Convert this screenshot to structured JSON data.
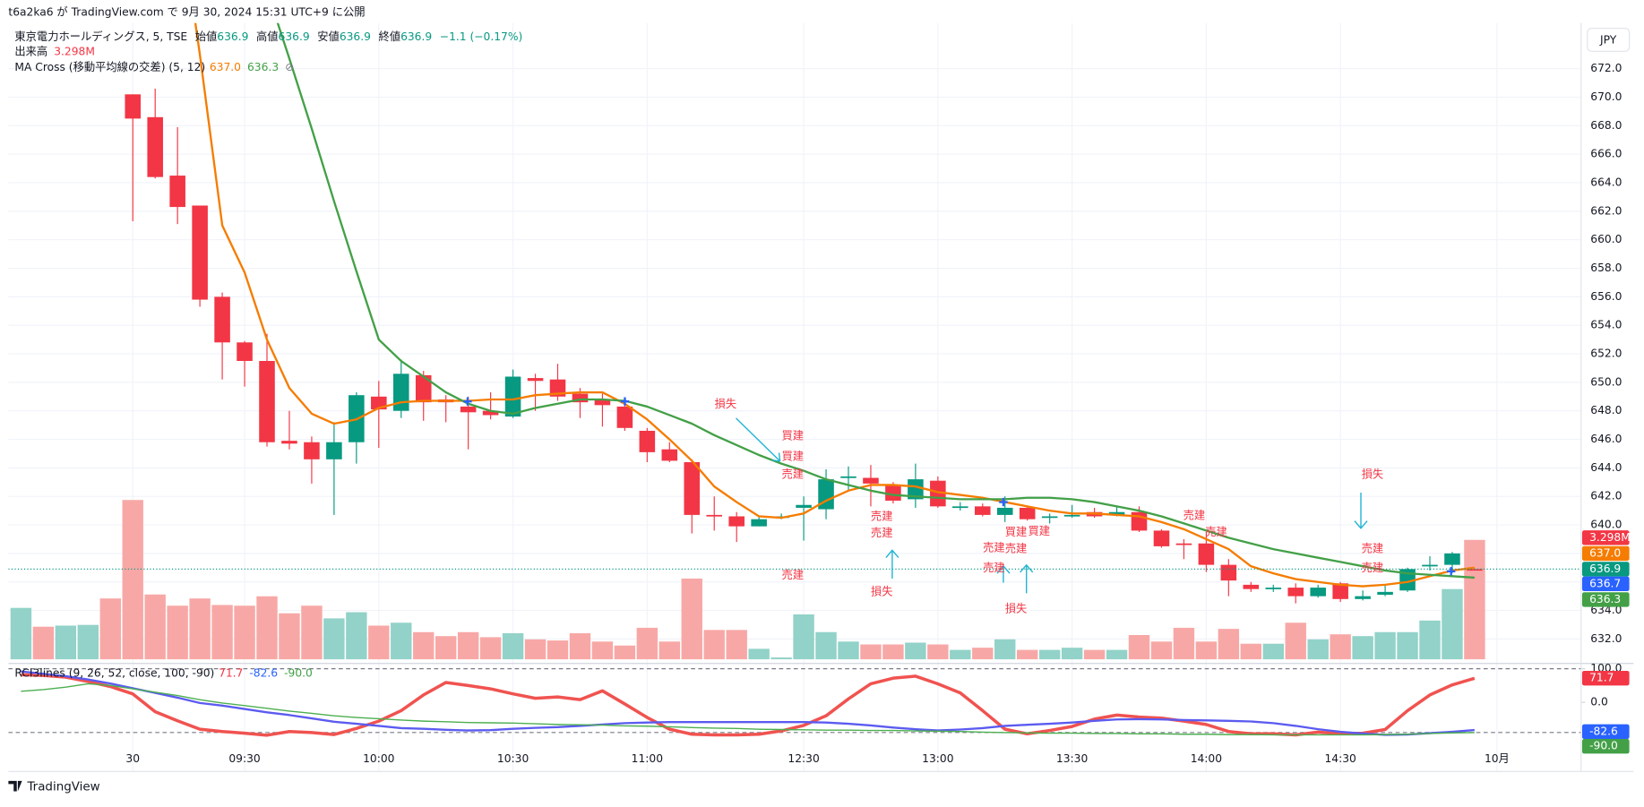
{
  "header": {
    "published": "t6a2ka6 が TradingView.com で 9月 30, 2024 15:31 UTC+9 に公開"
  },
  "legend": {
    "symbol": "東京電力ホールディングス, 5, TSE",
    "ohlc": [
      {
        "label": "始値",
        "value": "636.9"
      },
      {
        "label": "高値",
        "value": "636.9"
      },
      {
        "label": "安値",
        "value": "636.9"
      },
      {
        "label": "終値",
        "value": "636.9"
      }
    ],
    "change": "−1.1 (−0.17%)",
    "volume_label": "出来高",
    "volume_value": "3.298M",
    "ma_name": "MA Cross (移動平均線の交差) (5, 12)",
    "ma_values": [
      "637.0",
      "636.3"
    ],
    "rci_name": "RCI3lines (9, 26, 52, close, 100, -90)",
    "rci_values": [
      "71.7",
      "-82.6",
      "-90.0"
    ]
  },
  "currency": "JPY",
  "footer": "TradingView",
  "badges": [
    {
      "text": "3.298M",
      "color": "#f23645"
    },
    {
      "text": "637.0",
      "color": "#f57c00"
    },
    {
      "text": "636.9",
      "color": "#089981"
    },
    {
      "text": "636.7",
      "color": "#2962ff"
    },
    {
      "text": "636.3",
      "color": "#43a047"
    }
  ],
  "rci_badges": [
    {
      "text": "71.7",
      "color": "#f23645"
    },
    {
      "text": "-82.6",
      "color": "#2962ff"
    },
    {
      "text": "-90.0",
      "color": "#43a047"
    }
  ],
  "annotations": [
    "損失",
    "買建",
    "買建",
    "売建",
    "売建",
    "売建",
    "売建",
    "損失",
    "売建",
    "売建",
    "損失",
    "買建",
    "売建",
    "買建",
    "売建",
    "売建",
    "損失",
    "売建",
    "売建"
  ],
  "chart_data": {
    "type": "candlestick",
    "up_color": "#089981",
    "down_color": "#f23645",
    "categories": [
      null,
      null,
      null,
      null,
      null,
      "30",
      null,
      null,
      null,
      null,
      "09:30",
      null,
      null,
      null,
      null,
      null,
      "10:00",
      null,
      null,
      null,
      null,
      null,
      "10:30",
      null,
      null,
      null,
      null,
      null,
      "11:00",
      null,
      null,
      null,
      null,
      null,
      null,
      "12:30",
      null,
      null,
      null,
      null,
      null,
      "13:00",
      null,
      null,
      null,
      null,
      null,
      "13:30",
      null,
      null,
      null,
      null,
      null,
      "14:00",
      null,
      null,
      null,
      null,
      null,
      "14:30",
      null,
      null,
      null,
      null,
      null,
      null,
      "10月"
    ],
    "open": [
      null,
      null,
      null,
      null,
      null,
      670.2,
      668.6,
      664.5,
      662.4,
      656.0,
      652.8,
      651.5,
      645.9,
      645.8,
      644.6,
      645.8,
      649.0,
      648.0,
      650.5,
      648.8,
      648.3,
      648.0,
      647.6,
      650.3,
      650.2,
      649.2,
      648.8,
      648.3,
      646.6,
      645.3,
      644.4,
      640.7,
      640.6,
      639.9,
      640.5,
      641.2,
      641.1,
      643.3,
      643.3,
      642.8,
      641.8,
      643.1,
      641.2,
      641.3,
      640.7,
      641.2,
      640.5,
      640.6,
      640.9,
      640.7,
      640.9,
      639.6,
      638.7,
      638.7,
      637.2,
      635.8,
      635.5,
      635.6,
      635.0,
      635.9,
      634.8,
      635.1,
      635.4,
      637.1,
      637.2,
      636.9,
      null
    ],
    "high": [
      null,
      null,
      null,
      null,
      null,
      670.2,
      670.6,
      667.9,
      662.4,
      656.3,
      652.9,
      653.4,
      648.0,
      646.2,
      647.2,
      649.3,
      650.1,
      651.6,
      650.8,
      649.1,
      649.0,
      649.3,
      650.9,
      650.6,
      651.3,
      649.6,
      649.2,
      648.5,
      646.8,
      645.8,
      644.6,
      642.0,
      640.9,
      640.6,
      640.8,
      642.0,
      643.9,
      644.1,
      644.2,
      643.0,
      644.3,
      643.4,
      641.6,
      641.5,
      642.0,
      641.3,
      640.8,
      641.4,
      641.2,
      641.3,
      641.3,
      639.7,
      639.0,
      639.5,
      637.6,
      636.0,
      635.8,
      635.9,
      635.8,
      636.0,
      635.4,
      635.8,
      637.0,
      637.8,
      638.1,
      636.9,
      null
    ],
    "low": [
      null,
      null,
      null,
      null,
      null,
      661.3,
      664.3,
      661.1,
      655.3,
      650.2,
      649.7,
      645.5,
      645.3,
      642.9,
      640.7,
      644.3,
      645.4,
      647.5,
      647.3,
      647.2,
      645.3,
      647.4,
      647.5,
      648.0,
      648.7,
      647.5,
      646.9,
      646.6,
      644.4,
      644.4,
      639.4,
      639.6,
      638.8,
      639.9,
      640.4,
      638.9,
      640.4,
      642.4,
      641.3,
      641.5,
      641.2,
      641.2,
      641.0,
      640.6,
      640.2,
      640.3,
      640.1,
      640.5,
      640.5,
      640.6,
      639.5,
      638.4,
      637.6,
      636.7,
      635.0,
      635.3,
      635.3,
      634.5,
      634.9,
      634.6,
      634.7,
      635.0,
      635.3,
      636.8,
      636.6,
      636.9,
      null
    ],
    "close": [
      null,
      null,
      null,
      null,
      null,
      668.5,
      664.4,
      662.3,
      655.8,
      652.8,
      651.5,
      645.8,
      645.7,
      644.6,
      645.8,
      649.1,
      648.1,
      650.6,
      648.6,
      648.6,
      647.9,
      647.7,
      650.4,
      650.1,
      649.0,
      648.6,
      648.4,
      646.8,
      645.1,
      644.5,
      640.7,
      640.6,
      639.9,
      640.4,
      640.6,
      641.4,
      643.2,
      643.4,
      642.9,
      641.7,
      643.2,
      641.3,
      641.3,
      640.7,
      641.2,
      640.4,
      640.6,
      640.7,
      640.6,
      640.9,
      639.6,
      638.5,
      638.6,
      637.2,
      636.1,
      635.5,
      635.6,
      635.0,
      635.6,
      634.8,
      635.0,
      635.3,
      636.9,
      637.2,
      638.0,
      636.9,
      null
    ],
    "volume": [
      1.42,
      0.9,
      0.93,
      0.95,
      1.68,
      4.4,
      1.79,
      1.48,
      1.68,
      1.5,
      1.48,
      1.74,
      1.27,
      1.48,
      1.13,
      1.3,
      0.93,
      1.01,
      0.75,
      0.64,
      0.75,
      0.61,
      0.72,
      0.55,
      0.52,
      0.72,
      0.49,
      0.38,
      0.87,
      0.49,
      2.23,
      0.81,
      0.81,
      0.29,
      0.05,
      1.24,
      0.75,
      0.49,
      0.41,
      0.41,
      0.46,
      0.41,
      0.26,
      0.32,
      0.55,
      0.26,
      0.26,
      0.32,
      0.26,
      0.26,
      0.67,
      0.49,
      0.87,
      0.49,
      0.84,
      0.43,
      0.43,
      1.01,
      0.55,
      0.69,
      0.64,
      0.75,
      0.75,
      1.07,
      1.94,
      3.298,
      null
    ],
    "volume_colors": [
      "#92d2c8",
      "#f7a8a6",
      "#92d2c8",
      "#92d2c8",
      "#f7a8a6",
      "#f7a8a6",
      "#f7a8a6",
      "#f7a8a6",
      "#f7a8a6",
      "#f7a8a6",
      "#f7a8a6",
      "#f7a8a6",
      "#f7a8a6",
      "#f7a8a6",
      "#92d2c8",
      "#92d2c8",
      "#f7a8a6",
      "#92d2c8",
      "#f7a8a6",
      "#f7a8a6",
      "#f7a8a6",
      "#f7a8a6",
      "#92d2c8",
      "#f7a8a6",
      "#f7a8a6",
      "#f7a8a6",
      "#f7a8a6",
      "#f7a8a6",
      "#f7a8a6",
      "#f7a8a6",
      "#f7a8a6",
      "#f7a8a6",
      "#f7a8a6",
      "#92d2c8",
      "#92d2c8",
      "#92d2c8",
      "#92d2c8",
      "#92d2c8",
      "#f7a8a6",
      "#f7a8a6",
      "#92d2c8",
      "#f7a8a6",
      "#92d2c8",
      "#f7a8a6",
      "#92d2c8",
      "#f7a8a6",
      "#92d2c8",
      "#92d2c8",
      "#f7a8a6",
      "#92d2c8",
      "#f7a8a6",
      "#f7a8a6",
      "#f7a8a6",
      "#f7a8a6",
      "#f7a8a6",
      "#f7a8a6",
      "#92d2c8",
      "#f7a8a6",
      "#92d2c8",
      "#f7a8a6",
      "#92d2c8",
      "#92d2c8",
      "#92d2c8",
      "#92d2c8",
      "#92d2c8",
      "#f7a8a6",
      null
    ],
    "ma_lines": [
      {
        "color": "#f57c00",
        "values": [
          null,
          null,
          null,
          null,
          null,
          null,
          null,
          683.9,
          673.0,
          661.0,
          657.7,
          653.0,
          649.6,
          647.8,
          647.1,
          647.4,
          648.2,
          648.6,
          648.7,
          648.7,
          648.7,
          648.8,
          648.8,
          649.1,
          649.2,
          649.3,
          649.3,
          648.5,
          647.4,
          646.0,
          644.5,
          642.7,
          641.6,
          640.6,
          640.5,
          640.8,
          641.7,
          642.4,
          642.8,
          642.8,
          642.7,
          642.3,
          642.1,
          641.9,
          641.6,
          641.3,
          641.0,
          640.8,
          640.8,
          640.7,
          640.6,
          640.2,
          639.7,
          639.0,
          638.3,
          637.1,
          636.6,
          636.2,
          636.0,
          635.8,
          635.7,
          635.8,
          636.0,
          636.4,
          636.8,
          637.0,
          null
        ]
      },
      {
        "color": "#43a047",
        "values": [
          null,
          null,
          null,
          null,
          null,
          null,
          null,
          null,
          null,
          null,
          null,
          677.5,
          672.7,
          667.8,
          662.7,
          657.8,
          653.0,
          651.5,
          650.4,
          649.3,
          648.5,
          648.0,
          647.8,
          648.2,
          648.5,
          648.8,
          648.8,
          648.7,
          648.3,
          647.7,
          647.1,
          646.3,
          645.6,
          644.9,
          644.3,
          643.8,
          643.2,
          642.8,
          642.4,
          642.1,
          642.0,
          641.9,
          641.8,
          641.8,
          641.8,
          641.9,
          641.9,
          641.8,
          641.6,
          641.3,
          641.0,
          640.6,
          640.1,
          639.6,
          639.1,
          638.7,
          638.3,
          638.0,
          637.7,
          637.4,
          637.1,
          636.8,
          636.6,
          636.5,
          636.4,
          636.3,
          null
        ]
      }
    ],
    "ylim": [
      630.5,
      675.2
    ],
    "yticks": [
      {
        "value": 632,
        "label": "632.0"
      },
      {
        "value": 634,
        "label": "634.0"
      },
      {
        "value": 636,
        "label": "636.0"
      },
      {
        "value": 638,
        "label": "638.0"
      },
      {
        "value": 640,
        "label": "640.0"
      },
      {
        "value": 642,
        "label": "642.0"
      },
      {
        "value": 644,
        "label": "644.0"
      },
      {
        "value": 646,
        "label": "646.0"
      },
      {
        "value": 648,
        "label": "648.0"
      },
      {
        "value": 650,
        "label": "650.0"
      },
      {
        "value": 652,
        "label": "652.0"
      },
      {
        "value": 654,
        "label": "654.0"
      },
      {
        "value": 656,
        "label": "656.0"
      },
      {
        "value": 658,
        "label": "658.0"
      },
      {
        "value": 660,
        "label": "660.0"
      },
      {
        "value": 662,
        "label": "662.0"
      },
      {
        "value": 664,
        "label": "664.0"
      },
      {
        "value": 666,
        "label": "666.0"
      },
      {
        "value": 668,
        "label": "668.0"
      },
      {
        "value": 670,
        "label": "670.0"
      },
      {
        "value": 672,
        "label": "672.0"
      }
    ],
    "grid": true,
    "rci": {
      "ylim": [
        -131,
        112.5
      ],
      "yticks": [
        {
          "value": 100,
          "label": "100.0"
        },
        {
          "value": 0,
          "label": "0.0"
        }
      ],
      "levels": [
        100,
        -90
      ],
      "lines": [
        {
          "color": "#f05350",
          "values": [
            82,
            80,
            75,
            62,
            47,
            25,
            -28,
            -55,
            -80,
            -87,
            -92,
            -98,
            -87,
            -90,
            -96,
            -78,
            -56,
            -25,
            22,
            59,
            50,
            40,
            25,
            12,
            16,
            8,
            34,
            -5,
            -45,
            -80,
            -95,
            -97,
            -97,
            -95,
            -85,
            -69,
            -40,
            10,
            55,
            72,
            78,
            55,
            28,
            -25,
            -80,
            -94,
            -84,
            -72,
            -50,
            -38,
            -44,
            -47,
            -56,
            -66,
            -87,
            -94,
            -94,
            -97,
            -89,
            -94,
            -92,
            -81,
            -25,
            22,
            52,
            71.7,
            null
          ]
        },
        {
          "color": "#5b5bf0",
          "values": [
            92,
            85,
            78,
            68,
            56,
            42,
            28,
            14,
            -2,
            -10,
            -20,
            -30,
            -38,
            -48,
            -58,
            -64,
            -70,
            -77,
            -79,
            -82,
            -84,
            -83,
            -79,
            -76,
            -74,
            -70,
            -66,
            -62,
            -60,
            -59,
            -59,
            -59,
            -59,
            -59,
            -59,
            -59,
            -60,
            -64,
            -69,
            -75,
            -80,
            -84,
            -81,
            -77,
            -70,
            -67,
            -64,
            -60,
            -55,
            -51,
            -50,
            -51,
            -53,
            -54,
            -55,
            -57,
            -62,
            -70,
            -80,
            -88,
            -93,
            -97,
            -96,
            -92,
            -88,
            -82.6,
            null
          ]
        },
        {
          "color": "#4caf50",
          "values": [
            33,
            38,
            45,
            55,
            50,
            40,
            30,
            20,
            8,
            -2,
            -10,
            -18,
            -26,
            -33,
            -40,
            -45,
            -49,
            -53,
            -56,
            -58,
            -60,
            -61,
            -62,
            -64,
            -66,
            -67,
            -68,
            -70,
            -71,
            -73,
            -75,
            -77,
            -78,
            -80,
            -81,
            -82,
            -83,
            -83,
            -84,
            -84,
            -85,
            -86,
            -87,
            -89,
            -90,
            -91,
            -92,
            -92,
            -93,
            -93,
            -94,
            -94,
            -95,
            -95,
            -96,
            -96,
            -97,
            -97,
            -97,
            -97,
            -97,
            -96,
            -95,
            -93,
            -91,
            -90,
            null
          ]
        }
      ]
    }
  }
}
